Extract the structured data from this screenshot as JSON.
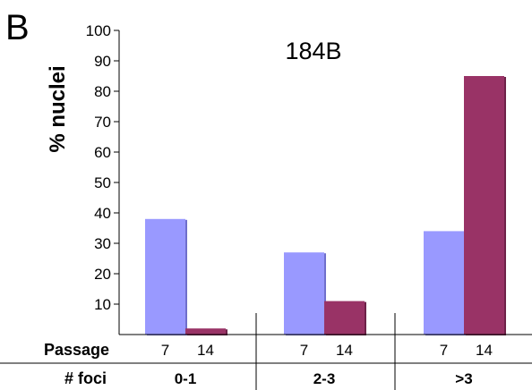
{
  "chart_data": {
    "type": "bar",
    "panel_letter": "B",
    "title": "184B",
    "ylabel": "% nuclei",
    "ylim": [
      0,
      100
    ],
    "yticks": [
      10,
      20,
      30,
      40,
      50,
      60,
      70,
      80,
      90,
      100
    ],
    "row_labels": {
      "passage": "Passage",
      "foci": "# foci"
    },
    "groups": [
      {
        "foci": "0-1",
        "bars": [
          {
            "passage": "7",
            "value": 38
          },
          {
            "passage": "14",
            "value": 2
          }
        ]
      },
      {
        "foci": "2-3",
        "bars": [
          {
            "passage": "7",
            "value": 27
          },
          {
            "passage": "14",
            "value": 11
          }
        ]
      },
      {
        "foci": ">3",
        "bars": [
          {
            "passage": "7",
            "value": 34
          },
          {
            "passage": "14",
            "value": 85
          }
        ]
      }
    ],
    "colors": {
      "passage_7": "#9999ff",
      "passage_14": "#993366"
    }
  }
}
